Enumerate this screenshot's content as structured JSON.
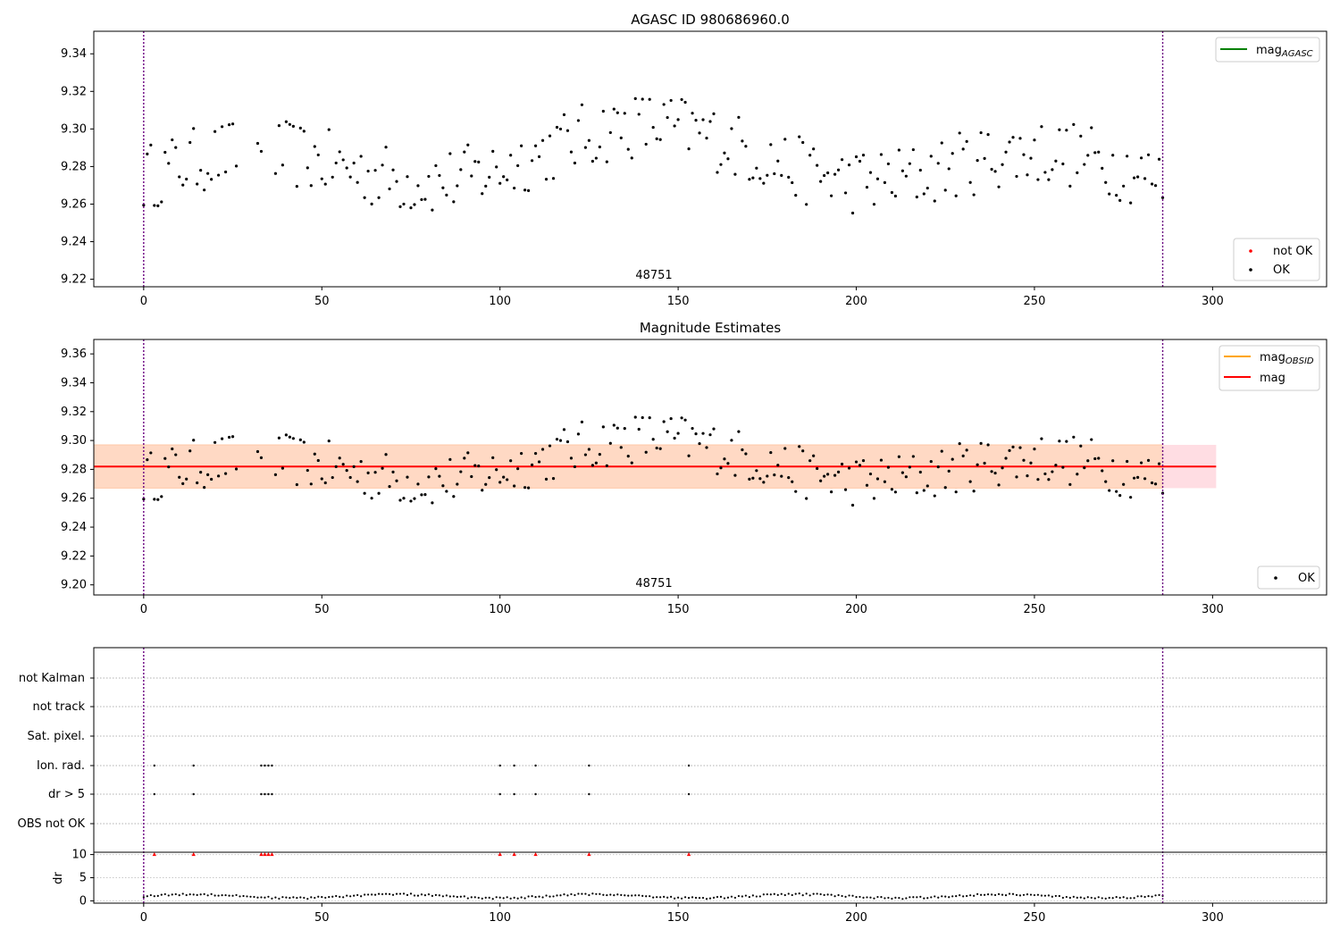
{
  "chart_data": [
    {
      "type": "scatter",
      "title": "AGASC ID 980686960.0",
      "xlim": [
        -14,
        332
      ],
      "ylim": [
        9.216,
        9.352
      ],
      "xticks": [
        0,
        50,
        100,
        150,
        200,
        250,
        300
      ],
      "yticks": [
        9.22,
        9.24,
        9.26,
        9.28,
        9.3,
        9.32,
        9.34
      ],
      "ytick_labels": [
        "9.22",
        "9.24",
        "9.26",
        "9.28",
        "9.30",
        "9.32",
        "9.34"
      ],
      "vlines": [
        0,
        286
      ],
      "annotation": "48751",
      "annotation_x": 143,
      "legend_upper": [
        {
          "label": "mag",
          "sub": "AGASC",
          "color": "#008000"
        }
      ],
      "legend_lower": [
        {
          "label": "not OK",
          "color": "#ff0000"
        },
        {
          "label": "OK",
          "color": "#000000"
        }
      ],
      "series": [
        {
          "name": "OK",
          "color": "#000000"
        }
      ]
    },
    {
      "type": "scatter",
      "title": "Magnitude Estimates",
      "xlim": [
        -14,
        332
      ],
      "ylim": [
        9.193,
        9.37
      ],
      "xticks": [
        0,
        50,
        100,
        150,
        200,
        250,
        300
      ],
      "yticks": [
        9.2,
        9.22,
        9.24,
        9.26,
        9.28,
        9.3,
        9.32,
        9.34,
        9.36
      ],
      "ytick_labels": [
        "9.20",
        "9.22",
        "9.24",
        "9.26",
        "9.28",
        "9.30",
        "9.32",
        "9.34",
        "9.36"
      ],
      "vlines": [
        0,
        286
      ],
      "annotation": "48751",
      "annotation_x": 143,
      "mag_line": {
        "y": 9.282,
        "x": [
          -14,
          301
        ],
        "color": "#ff0000"
      },
      "band_outer": {
        "y": [
          9.267,
          9.297
        ],
        "x": [
          -14,
          301
        ],
        "color": "#ffdde3"
      },
      "band_inner": {
        "y": [
          9.267,
          9.297
        ],
        "x": [
          -14,
          286
        ],
        "color": "#ffd9c4"
      },
      "legend_upper": [
        {
          "label": "mag",
          "sub": "OBSID",
          "color": "#ffa500"
        },
        {
          "label": "mag",
          "sub": "",
          "color": "#ff0000"
        }
      ],
      "legend_lower": [
        {
          "label": "OK",
          "color": "#000000"
        }
      ],
      "series": [
        {
          "name": "OK",
          "color": "#000000"
        }
      ]
    },
    {
      "type": "scatter",
      "xlim": [
        -14,
        332
      ],
      "xticks": [
        0,
        50,
        100,
        150,
        200,
        250,
        300
      ],
      "vlines": [
        0,
        286
      ],
      "flag_rows": [
        "OBS not OK",
        "dr > 5",
        "Ion. rad.",
        "Sat. pixel.",
        "not track",
        "not Kalman"
      ],
      "flag_points": {
        "dr > 5": [
          3,
          14,
          33,
          34,
          35,
          36,
          100,
          104,
          110,
          125,
          153
        ],
        "Ion. rad.": [
          3,
          14,
          33,
          34,
          35,
          36,
          100,
          104,
          110,
          125,
          153
        ]
      },
      "dr_ylabel": "dr",
      "dr_yticks": [
        0,
        5,
        10
      ],
      "dr_ylim": [
        -0.5,
        10.5
      ],
      "dr_markers": {
        "x": [
          3,
          14,
          33,
          34,
          35,
          36,
          100,
          104,
          110,
          125,
          153
        ],
        "y": 10,
        "color": "#ff0000"
      }
    }
  ]
}
